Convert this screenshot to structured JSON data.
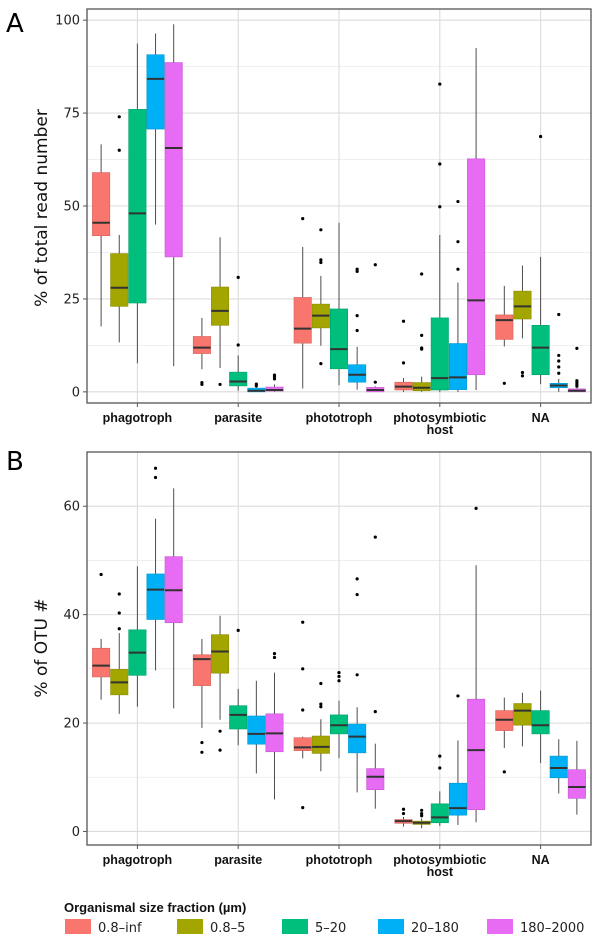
{
  "figure": {
    "legend_title": "Organismal size fraction (µm)"
  },
  "chart_data": [
    {
      "type": "boxplot",
      "panel": "A",
      "title": "",
      "xlabel": "",
      "ylabel": "% of total read number",
      "ylim": [
        -3,
        103
      ],
      "yticks": [
        0,
        25,
        50,
        75,
        100
      ],
      "grid": true,
      "legend": "bottom",
      "categories": [
        "phagotroph",
        "parasite",
        "phototroph",
        "photosymbiotic host",
        "NA"
      ],
      "category_lines": [
        [
          "phagotroph"
        ],
        [
          "parasite"
        ],
        [
          "phototroph"
        ],
        [
          "photosymbiotic",
          "host"
        ],
        [
          "NA"
        ]
      ],
      "series": [
        {
          "name": "0.8–inf",
          "color": "#F8766D",
          "boxes": [
            {
              "low": 17.6,
              "q1": 42.0,
              "median": 45.5,
              "q3": 59.0,
              "high": 66.6,
              "outliers": []
            },
            {
              "low": 6.1,
              "q1": 10.3,
              "median": 11.9,
              "q3": 14.9,
              "high": 19.9,
              "outliers": [
                2.0,
                2.5
              ]
            },
            {
              "low": 0.9,
              "q1": 13.1,
              "median": 17.0,
              "q3": 25.4,
              "high": 39.0,
              "outliers": [
                46.6
              ]
            },
            {
              "low": 0.0,
              "q1": 0.5,
              "median": 1.4,
              "q3": 2.6,
              "high": 3.7,
              "outliers": [
                7.8,
                19.0
              ]
            },
            {
              "low": 12.2,
              "q1": 14.1,
              "median": 19.3,
              "q3": 20.7,
              "high": 28.5,
              "outliers": [
                2.3
              ]
            }
          ]
        },
        {
          "name": "0.8–5",
          "color": "#A3A500",
          "boxes": [
            {
              "low": 13.3,
              "q1": 23.0,
              "median": 28.0,
              "q3": 37.2,
              "high": 42.2,
              "outliers": [
                65.0,
                74.0
              ]
            },
            {
              "low": 6.4,
              "q1": 17.9,
              "median": 21.8,
              "q3": 28.2,
              "high": 41.6,
              "outliers": [
                2.0
              ]
            },
            {
              "low": 12.4,
              "q1": 17.2,
              "median": 20.5,
              "q3": 23.6,
              "high": 31.2,
              "outliers": [
                7.6,
                34.8,
                35.5,
                43.6
              ]
            },
            {
              "low": 0.0,
              "q1": 0.3,
              "median": 1.1,
              "q3": 2.5,
              "high": 4.1,
              "outliers": [
                11.5,
                11.8,
                15.2,
                31.7
              ]
            },
            {
              "low": 14.4,
              "q1": 19.6,
              "median": 23.0,
              "q3": 27.1,
              "high": 34.0,
              "outliers": [
                4.3,
                5.2
              ]
            }
          ]
        },
        {
          "name": "5–20",
          "color": "#00BF7D",
          "boxes": [
            {
              "low": 7.7,
              "q1": 23.9,
              "median": 48.0,
              "q3": 76.0,
              "high": 93.7,
              "outliers": []
            },
            {
              "low": 0.3,
              "q1": 1.6,
              "median": 2.8,
              "q3": 5.3,
              "high": 9.8,
              "outliers": [
                12.6,
                30.8
              ]
            },
            {
              "low": 1.8,
              "q1": 6.2,
              "median": 11.5,
              "q3": 22.3,
              "high": 45.5,
              "outliers": []
            },
            {
              "low": 0.0,
              "q1": 0.5,
              "median": 3.7,
              "q3": 19.9,
              "high": 42.2,
              "outliers": [
                49.8,
                61.3,
                82.8
              ]
            },
            {
              "low": 2.1,
              "q1": 4.6,
              "median": 11.9,
              "q3": 17.9,
              "high": 36.3,
              "outliers": [
                68.7
              ]
            }
          ]
        },
        {
          "name": "20–180",
          "color": "#00B0F6",
          "boxes": [
            {
              "low": 45.0,
              "q1": 70.7,
              "median": 84.2,
              "q3": 90.7,
              "high": 96.4,
              "outliers": []
            },
            {
              "low": 0.0,
              "q1": 0.0,
              "median": 0.3,
              "q3": 1.0,
              "high": 1.3,
              "outliers": [
                1.6,
                2.1
              ]
            },
            {
              "low": 0.6,
              "q1": 2.6,
              "median": 4.6,
              "q3": 7.3,
              "high": 12.1,
              "outliers": [
                16.5,
                20.5,
                32.4,
                33.0
              ]
            },
            {
              "low": 0.0,
              "q1": 0.6,
              "median": 3.9,
              "q3": 13.0,
              "high": 29.4,
              "outliers": [
                33.0,
                40.4,
                51.2
              ]
            },
            {
              "low": 0.0,
              "q1": 1.1,
              "median": 1.7,
              "q3": 2.3,
              "high": 3.5,
              "outliers": [
                5.0,
                6.7,
                8.3,
                9.8,
                20.8
              ]
            }
          ]
        },
        {
          "name": "180–2000",
          "color": "#E76BF3",
          "boxes": [
            {
              "low": 6.9,
              "q1": 36.3,
              "median": 65.6,
              "q3": 88.6,
              "high": 98.9,
              "outliers": []
            },
            {
              "low": 0.0,
              "q1": 0.2,
              "median": 0.5,
              "q3": 1.3,
              "high": 2.0,
              "outliers": [
                3.5,
                4.0,
                4.5
              ]
            },
            {
              "low": 0.0,
              "q1": 0.0,
              "median": 0.5,
              "q3": 1.2,
              "high": 1.5,
              "outliers": [
                2.6,
                34.2
              ]
            },
            {
              "low": 0.5,
              "q1": 4.6,
              "median": 24.6,
              "q3": 62.7,
              "high": 92.5,
              "outliers": []
            },
            {
              "low": 0.0,
              "q1": 0.0,
              "median": 0.3,
              "q3": 0.8,
              "high": 1.0,
              "outliers": [
                1.5,
                2.0,
                2.5,
                3.0,
                11.7
              ]
            }
          ]
        }
      ]
    },
    {
      "type": "boxplot",
      "panel": "B",
      "title": "",
      "xlabel": "",
      "ylabel": "% of OTU #",
      "ylim": [
        -2.5,
        70
      ],
      "yticks": [
        0,
        20,
        40,
        60
      ],
      "grid": true,
      "legend": "bottom",
      "categories": [
        "phagotroph",
        "parasite",
        "phototroph",
        "photosymbiotic host",
        "NA"
      ],
      "category_lines": [
        [
          "phagotroph"
        ],
        [
          "parasite"
        ],
        [
          "phototroph"
        ],
        [
          "photosymbiotic",
          "host"
        ],
        [
          "NA"
        ]
      ],
      "series": [
        {
          "name": "0.8–inf",
          "color": "#F8766D",
          "boxes": [
            {
              "low": 24.3,
              "q1": 28.5,
              "median": 30.6,
              "q3": 33.8,
              "high": 35.5,
              "outliers": [
                47.4
              ]
            },
            {
              "low": 19.1,
              "q1": 26.9,
              "median": 31.8,
              "q3": 32.6,
              "high": 35.5,
              "outliers": [
                14.6,
                16.4
              ]
            },
            {
              "low": 13.5,
              "q1": 14.9,
              "median": 15.5,
              "q3": 17.3,
              "high": 17.5,
              "outliers": [
                4.4,
                22.4,
                30.0,
                38.6
              ]
            },
            {
              "low": 0.9,
              "q1": 1.5,
              "median": 1.9,
              "q3": 2.2,
              "high": 2.7,
              "outliers": [
                3.3,
                4.1
              ]
            },
            {
              "low": 15.4,
              "q1": 18.6,
              "median": 20.6,
              "q3": 22.3,
              "high": 24.7,
              "outliers": [
                11.0
              ]
            }
          ]
        },
        {
          "name": "0.8–5",
          "color": "#A3A500",
          "boxes": [
            {
              "low": 21.7,
              "q1": 25.2,
              "median": 27.5,
              "q3": 29.9,
              "high": 36.6,
              "outliers": [
                37.4,
                40.3,
                43.8
              ]
            },
            {
              "low": 20.6,
              "q1": 29.2,
              "median": 33.2,
              "q3": 36.3,
              "high": 39.8,
              "outliers": [
                15.0,
                18.5
              ]
            },
            {
              "low": 11.1,
              "q1": 14.4,
              "median": 15.6,
              "q3": 17.6,
              "high": 20.7,
              "outliers": [
                23.0,
                23.5,
                27.3
              ]
            },
            {
              "low": 0.6,
              "q1": 1.3,
              "median": 1.6,
              "q3": 1.9,
              "high": 2.4,
              "outliers": [
                2.9,
                3.3,
                3.9
              ]
            },
            {
              "low": 15.7,
              "q1": 19.6,
              "median": 22.3,
              "q3": 23.6,
              "high": 25.6,
              "outliers": []
            }
          ]
        },
        {
          "name": "5–20",
          "color": "#00BF7D",
          "boxes": [
            {
              "low": 23.0,
              "q1": 28.8,
              "median": 33.0,
              "q3": 37.2,
              "high": 48.9,
              "outliers": []
            },
            {
              "low": 15.9,
              "q1": 18.9,
              "median": 21.5,
              "q3": 23.2,
              "high": 26.3,
              "outliers": [
                37.1
              ]
            },
            {
              "low": 13.5,
              "q1": 18.0,
              "median": 19.6,
              "q3": 21.5,
              "high": 24.1,
              "outliers": [
                27.8,
                28.6,
                29.3
              ]
            },
            {
              "low": 1.0,
              "q1": 1.6,
              "median": 2.6,
              "q3": 5.1,
              "high": 7.4,
              "outliers": [
                11.7,
                13.9
              ]
            },
            {
              "low": 12.6,
              "q1": 18.0,
              "median": 19.6,
              "q3": 22.3,
              "high": 26.0,
              "outliers": []
            }
          ]
        },
        {
          "name": "20–180",
          "color": "#00B0F6",
          "boxes": [
            {
              "low": 29.7,
              "q1": 39.1,
              "median": 44.6,
              "q3": 47.5,
              "high": 57.7,
              "outliers": [
                65.3,
                67.0
              ]
            },
            {
              "low": 10.7,
              "q1": 16.1,
              "median": 18.0,
              "q3": 21.3,
              "high": 27.8,
              "outliers": []
            },
            {
              "low": 7.2,
              "q1": 14.5,
              "median": 17.5,
              "q3": 19.8,
              "high": 22.9,
              "outliers": [
                28.9,
                43.7,
                46.6
              ]
            },
            {
              "low": 1.2,
              "q1": 3.0,
              "median": 4.3,
              "q3": 8.9,
              "high": 16.8,
              "outliers": [
                25.0
              ]
            },
            {
              "low": 7.0,
              "q1": 9.9,
              "median": 11.7,
              "q3": 13.9,
              "high": 17.0,
              "outliers": []
            }
          ]
        },
        {
          "name": "180–2000",
          "color": "#E76BF3",
          "boxes": [
            {
              "low": 22.7,
              "q1": 38.5,
              "median": 44.5,
              "q3": 50.7,
              "high": 63.3,
              "outliers": []
            },
            {
              "low": 5.9,
              "q1": 14.7,
              "median": 18.1,
              "q3": 21.7,
              "high": 29.3,
              "outliers": [
                32.1,
                32.8
              ]
            },
            {
              "low": 4.2,
              "q1": 7.7,
              "median": 10.1,
              "q3": 11.6,
              "high": 16.2,
              "outliers": [
                22.1,
                54.3
              ]
            },
            {
              "low": 1.7,
              "q1": 4.0,
              "median": 15.0,
              "q3": 24.4,
              "high": 49.1,
              "outliers": [
                59.6
              ]
            },
            {
              "low": 3.1,
              "q1": 6.1,
              "median": 8.2,
              "q3": 11.4,
              "high": 16.7,
              "outliers": []
            }
          ]
        }
      ]
    }
  ]
}
